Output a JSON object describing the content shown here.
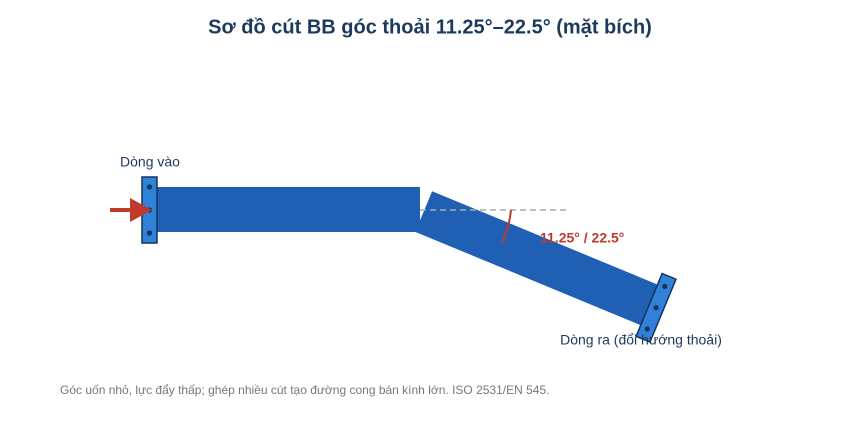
{
  "title": "Sơ đồ cút BB góc thoải 11.25°–22.5° (mặt bích)",
  "labels": {
    "inlet": "Dòng vào",
    "outlet": "Dòng ra (đổi hướng thoải)",
    "angle": "11.25° / 22.5°"
  },
  "caption": "Góc uốn nhỏ, lực đẩy thấp; ghép nhiều cút tạo đường cong bán kính lớn. ISO 2531/EN 545."
}
